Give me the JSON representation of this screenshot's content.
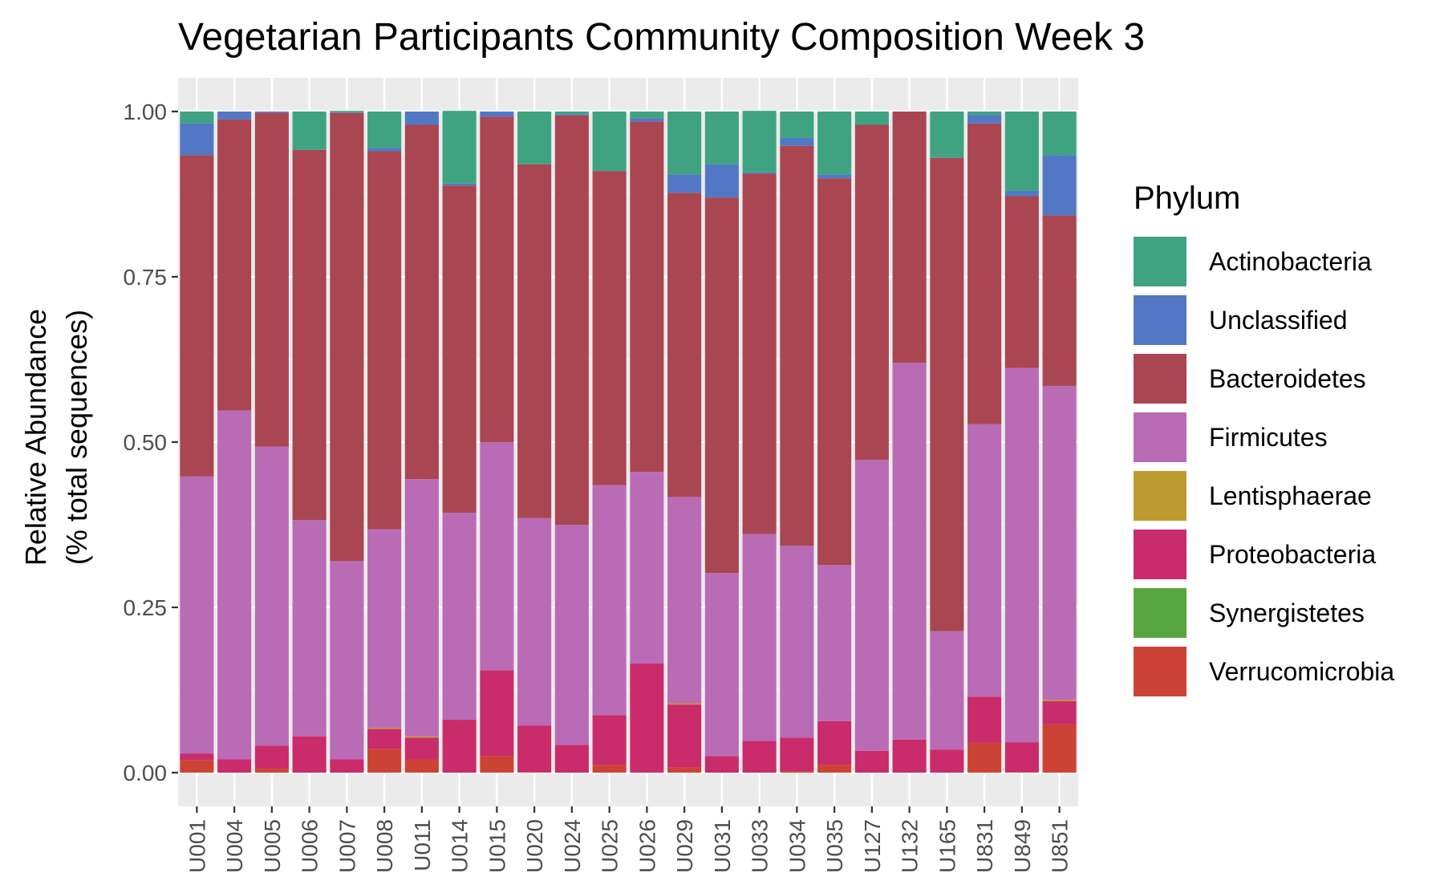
{
  "chart_data": {
    "type": "bar",
    "stacked": true,
    "title": "Vegetarian Participants Community Composition Week 3",
    "xlabel": "",
    "ylabel_lines": [
      "Relative Abundance",
      "(% total sequences)"
    ],
    "ylim": [
      0,
      1
    ],
    "yticks": [
      "0.00",
      "0.25",
      "0.50",
      "0.75",
      "1.00"
    ],
    "ytick_values": [
      0,
      0.25,
      0.5,
      0.75,
      1.0
    ],
    "grid": true,
    "legend_title": "Phylum",
    "legend_position": "right",
    "categories": [
      "U001",
      "U004",
      "U005",
      "U006",
      "U007",
      "U008",
      "U011",
      "U014",
      "U015",
      "U020",
      "U024",
      "U025",
      "U026",
      "U029",
      "U031",
      "U033",
      "U034",
      "U035",
      "U127",
      "U132",
      "U165",
      "U831",
      "U849",
      "U851"
    ],
    "series": [
      {
        "name": "Actinobacteria",
        "color": "#3FA381",
        "values": [
          0.018,
          0.0,
          0.0,
          0.058,
          0.002,
          0.055,
          0.0,
          0.11,
          0.0,
          0.08,
          0.004,
          0.09,
          0.01,
          0.095,
          0.08,
          0.093,
          0.04,
          0.095,
          0.02,
          0.0,
          0.07,
          0.005,
          0.12,
          0.066
        ]
      },
      {
        "name": "Unclassified",
        "color": "#5278C5",
        "values": [
          0.048,
          0.012,
          0.002,
          0.0,
          0.001,
          0.005,
          0.02,
          0.003,
          0.008,
          0.0,
          0.002,
          0.0,
          0.005,
          0.028,
          0.05,
          0.002,
          0.012,
          0.006,
          0.0,
          0.0,
          0.0,
          0.013,
          0.008,
          0.091
        ]
      },
      {
        "name": "Bacteroidetes",
        "color": "#A94652",
        "values": [
          0.486,
          0.44,
          0.505,
          0.56,
          0.678,
          0.572,
          0.536,
          0.495,
          0.492,
          0.535,
          0.619,
          0.475,
          0.53,
          0.46,
          0.568,
          0.545,
          0.605,
          0.585,
          0.507,
          0.38,
          0.716,
          0.455,
          0.26,
          0.258
        ]
      },
      {
        "name": "Firmicutes",
        "color": "#B96BB6",
        "values": [
          0.419,
          0.528,
          0.452,
          0.327,
          0.3,
          0.3,
          0.389,
          0.313,
          0.345,
          0.314,
          0.333,
          0.348,
          0.29,
          0.312,
          0.277,
          0.313,
          0.29,
          0.236,
          0.44,
          0.57,
          0.179,
          0.412,
          0.566,
          0.475
        ]
      },
      {
        "name": "Lentisphaerae",
        "color": "#BC9A30",
        "values": [
          0.0,
          0.0,
          0.0,
          0.0,
          0.0,
          0.002,
          0.002,
          0.0,
          0.0,
          0.0,
          0.0,
          0.0,
          0.0,
          0.002,
          0.0,
          0.0,
          0.0,
          0.0,
          0.0,
          0.0,
          0.0,
          0.0,
          0.0,
          0.002
        ]
      },
      {
        "name": "Proteobacteria",
        "color": "#C92B6B",
        "values": [
          0.01,
          0.02,
          0.035,
          0.055,
          0.02,
          0.03,
          0.033,
          0.08,
          0.13,
          0.07,
          0.042,
          0.075,
          0.165,
          0.095,
          0.025,
          0.048,
          0.051,
          0.066,
          0.033,
          0.05,
          0.035,
          0.07,
          0.045,
          0.035
        ]
      },
      {
        "name": "Synergistetes",
        "color": "#58A640",
        "values": [
          0.0,
          0.0,
          0.0,
          0.0,
          0.0,
          0.0,
          0.0,
          0.0,
          0.0,
          0.0,
          0.0,
          0.0,
          0.0,
          0.0,
          0.0,
          0.0,
          0.0,
          0.0,
          0.0,
          0.0,
          0.0,
          0.0,
          0.0,
          0.0
        ]
      },
      {
        "name": "Verrucomicrobia",
        "color": "#CC4335",
        "values": [
          0.019,
          0.0,
          0.006,
          0.0,
          0.0,
          0.036,
          0.02,
          0.0,
          0.025,
          0.001,
          0.0,
          0.012,
          0.0,
          0.008,
          0.0,
          0.0,
          0.002,
          0.012,
          0.0,
          0.0,
          0.0,
          0.045,
          0.001,
          0.073
        ]
      }
    ]
  }
}
